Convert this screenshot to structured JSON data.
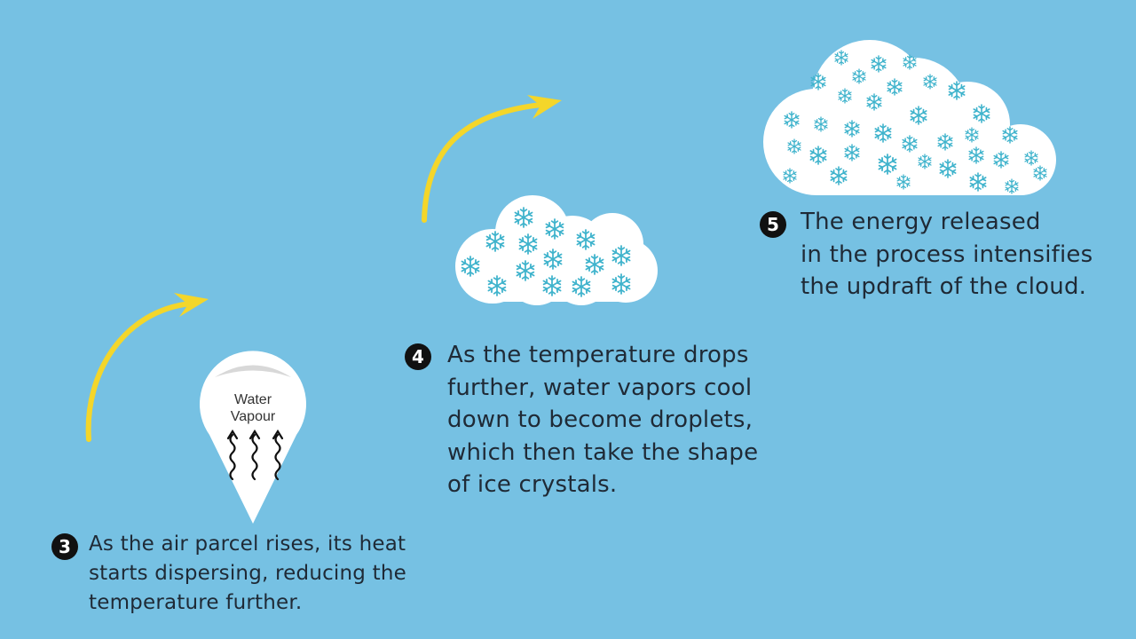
{
  "diagram": {
    "colors": {
      "background": "#76c1e3",
      "arrow": "#f4d62a",
      "cloud": "#ffffff",
      "snowflake": "#3fb3cc",
      "badge": "#111111",
      "text": "#1f2a36"
    },
    "balloon": {
      "line1": "Water",
      "line2": "Vapour",
      "icon": "wavy-up-arrows-icon"
    },
    "steps": [
      {
        "number": "3",
        "lines": [
          "As the air parcel rises, its heat",
          "starts dispersing, reducing the",
          "temperature further."
        ]
      },
      {
        "number": "4",
        "lines": [
          "As the temperature drops",
          "further, water vapors cool",
          "down to become droplets,",
          "which then take the shape",
          "of ice crystals."
        ]
      },
      {
        "number": "5",
        "lines": [
          "The energy released",
          "in the process intensifies",
          "the updraft of the cloud."
        ]
      }
    ]
  }
}
